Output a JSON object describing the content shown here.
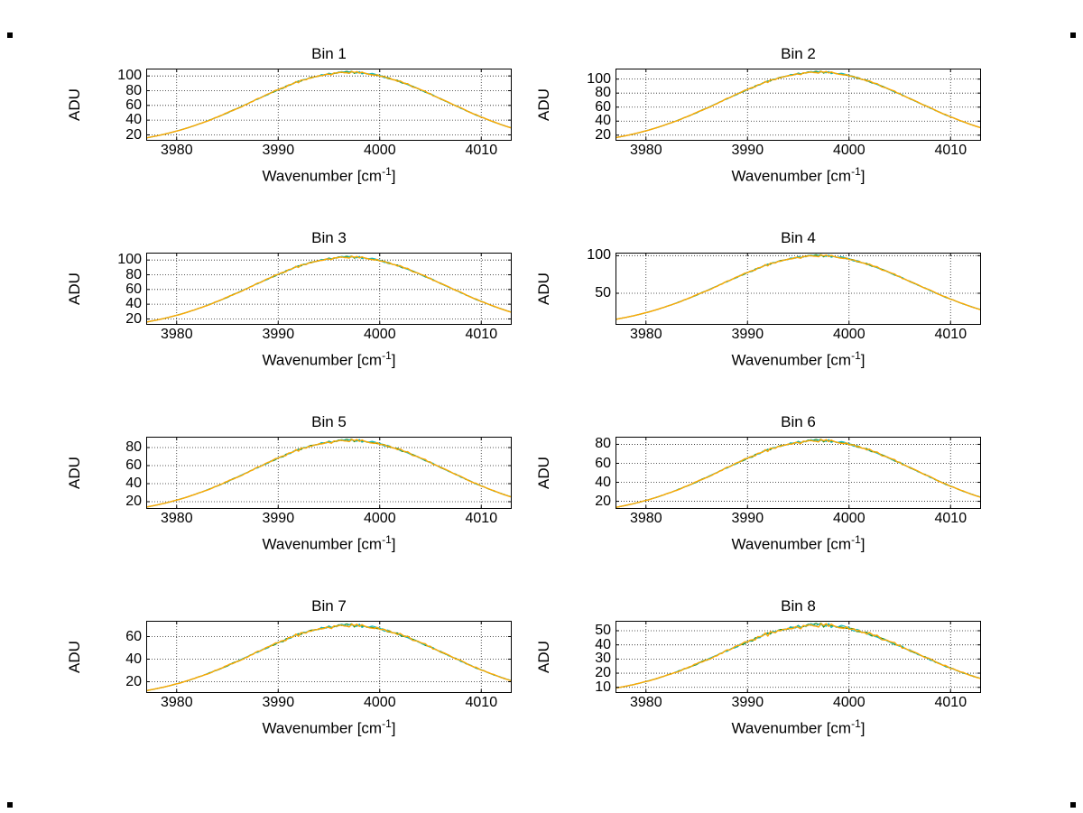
{
  "figure": {
    "background": "#ffffff",
    "ylabel": "ADU",
    "xlabel": {
      "prefix": "Wavenumber [cm",
      "sup": "-1",
      "suffix": "]"
    },
    "xticks": [
      3980,
      3990,
      4000,
      4010
    ],
    "xlim": [
      3977,
      4013
    ],
    "grid_style": "dotted",
    "axis_color": "#000000",
    "grid_color": "#222222",
    "line_colors": [
      "#1b8a1b",
      "#1ab8b8",
      "#ffa800"
    ]
  },
  "chart_data": [
    {
      "type": "line",
      "title": "Bin 1",
      "ylabel": "ADU",
      "xlabel": "Wavenumber [cm^-1]",
      "x": [
        3977,
        3980,
        3985,
        3990,
        3995,
        4000,
        4005,
        4010,
        4012
      ],
      "values": [
        16,
        25,
        50,
        81,
        103,
        100,
        75,
        44,
        34
      ],
      "yticks": [
        20,
        40,
        60,
        80,
        100
      ],
      "ylim": [
        12,
        110
      ],
      "fit": {
        "center": 3997,
        "sigma": 9.5,
        "peak": 105,
        "base": 5
      }
    },
    {
      "type": "line",
      "title": "Bin 2",
      "ylabel": "ADU",
      "xlabel": "Wavenumber [cm^-1]",
      "x": [
        3977,
        3980,
        3985,
        3990,
        3995,
        4000,
        4005,
        4010,
        4012
      ],
      "values": [
        16,
        26,
        52,
        85,
        108,
        105,
        79,
        46,
        35
      ],
      "yticks": [
        20,
        40,
        60,
        80,
        100
      ],
      "ylim": [
        12,
        115
      ],
      "fit": {
        "center": 3997,
        "sigma": 9.5,
        "peak": 110,
        "base": 5
      }
    },
    {
      "type": "line",
      "title": "Bin 3",
      "ylabel": "ADU",
      "xlabel": "Wavenumber [cm^-1]",
      "x": [
        3977,
        3980,
        3985,
        3990,
        3995,
        4000,
        4005,
        4010,
        4012
      ],
      "values": [
        16,
        25,
        50,
        80,
        102,
        99,
        74,
        44,
        34
      ],
      "yticks": [
        20,
        40,
        60,
        80,
        100
      ],
      "ylim": [
        12,
        110
      ],
      "fit": {
        "center": 3997,
        "sigma": 9.5,
        "peak": 104,
        "base": 5
      }
    },
    {
      "type": "line",
      "title": "Bin 4",
      "ylabel": "ADU",
      "xlabel": "Wavenumber [cm^-1]",
      "x": [
        3977,
        3980,
        3985,
        3990,
        3995,
        4000,
        4005,
        4010,
        4012
      ],
      "values": [
        15,
        24,
        48,
        77,
        98,
        95,
        72,
        42,
        32
      ],
      "yticks": [
        50,
        100
      ],
      "ylim": [
        8,
        104
      ],
      "fit": {
        "center": 3997,
        "sigma": 9.5,
        "peak": 100,
        "base": 5
      }
    },
    {
      "type": "line",
      "title": "Bin 5",
      "ylabel": "ADU",
      "xlabel": "Wavenumber [cm^-1]",
      "x": [
        3977,
        3980,
        3985,
        3990,
        3995,
        4000,
        4005,
        4010,
        4012
      ],
      "values": [
        14,
        22,
        42,
        68,
        86,
        84,
        63,
        38,
        29
      ],
      "yticks": [
        20,
        40,
        60,
        80
      ],
      "ylim": [
        12,
        92
      ],
      "fit": {
        "center": 3997,
        "sigma": 9.5,
        "peak": 88,
        "base": 5
      }
    },
    {
      "type": "line",
      "title": "Bin 6",
      "ylabel": "ADU",
      "xlabel": "Wavenumber [cm^-1]",
      "x": [
        3977,
        3980,
        3985,
        3990,
        3995,
        4000,
        4005,
        4010,
        4012
      ],
      "values": [
        14,
        21,
        41,
        65,
        82,
        80,
        60,
        36,
        28
      ],
      "yticks": [
        20,
        40,
        60,
        80
      ],
      "ylim": [
        12,
        88
      ],
      "fit": {
        "center": 3997,
        "sigma": 9.5,
        "peak": 84,
        "base": 5
      }
    },
    {
      "type": "line",
      "title": "Bin 7",
      "ylabel": "ADU",
      "xlabel": "Wavenumber [cm^-1]",
      "x": [
        3977,
        3980,
        3985,
        3990,
        3995,
        4000,
        4005,
        4010,
        4012
      ],
      "values": [
        12,
        18,
        34,
        55,
        69,
        67,
        51,
        30,
        24
      ],
      "yticks": [
        20,
        40,
        60
      ],
      "ylim": [
        10,
        74
      ],
      "fit": {
        "center": 3997,
        "sigma": 9.5,
        "peak": 70,
        "base": 5
      }
    },
    {
      "type": "line",
      "title": "Bin 8",
      "ylabel": "ADU",
      "xlabel": "Wavenumber [cm^-1]",
      "x": [
        3977,
        3980,
        3985,
        3990,
        3995,
        4000,
        4005,
        4010,
        4012
      ],
      "values": [
        9,
        14,
        26,
        42,
        53,
        52,
        39,
        24,
        18
      ],
      "yticks": [
        10,
        20,
        30,
        40,
        50
      ],
      "ylim": [
        6,
        57
      ],
      "fit": {
        "center": 3997,
        "sigma": 9.5,
        "peak": 54,
        "base": 4
      }
    }
  ]
}
